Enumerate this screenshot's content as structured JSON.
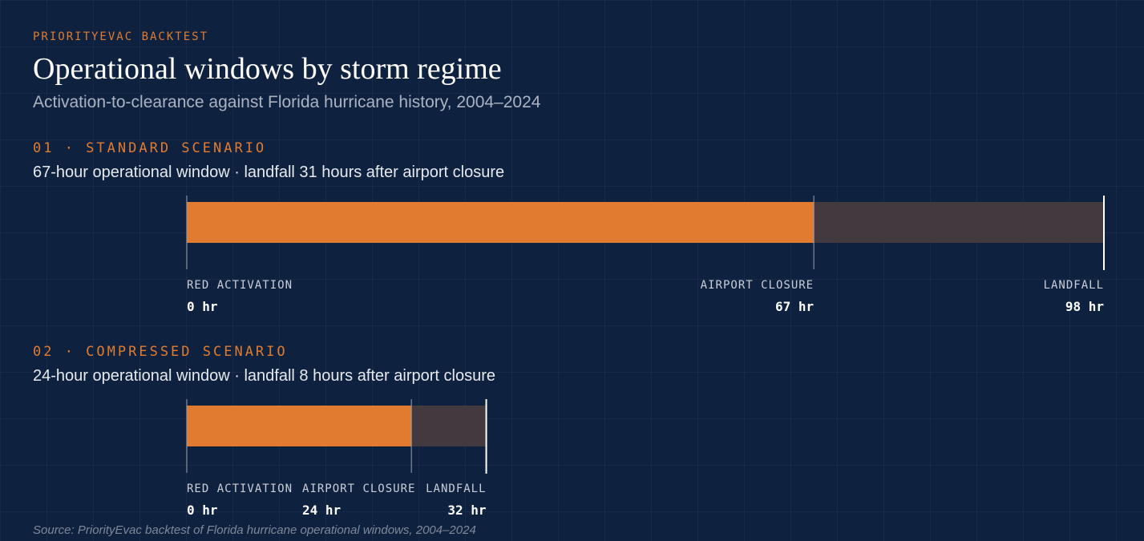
{
  "header": {
    "eyebrow": "PRIORITYEVAC BACKTEST",
    "title": "Operational windows by storm regime",
    "subtitle": "Activation-to-clearance against Florida hurricane history, 2004–2024"
  },
  "colors": {
    "background": "#0e2240",
    "operational_window": "#e07b2f",
    "post_closure": "#433a40",
    "accent": "#e07b2f"
  },
  "chart_data": [
    {
      "type": "bar",
      "label": "01 · STANDARD SCENARIO",
      "description": "67-hour operational window · landfall 31 hours after airport closure",
      "xlim": [
        0,
        98
      ],
      "segments": [
        {
          "start": 0,
          "end": 67
        },
        {
          "start": 67,
          "end": 98
        }
      ],
      "milestones": [
        {
          "label": "RED ACTIVATION",
          "value": 0,
          "value_label": "0 hr"
        },
        {
          "label": "AIRPORT CLOSURE",
          "value": 67,
          "value_label": "67 hr"
        },
        {
          "label": "LANDFALL",
          "value": 98,
          "value_label": "98 hr"
        }
      ]
    },
    {
      "type": "bar",
      "label": "02 · COMPRESSED SCENARIO",
      "description": "24-hour operational window · landfall 8 hours after airport closure",
      "xlim": [
        0,
        98
      ],
      "segments": [
        {
          "start": 0,
          "end": 24
        },
        {
          "start": 24,
          "end": 32
        }
      ],
      "milestones": [
        {
          "label": "RED ACTIVATION",
          "value": 0,
          "value_label": "0 hr"
        },
        {
          "label": "AIRPORT CLOSURE",
          "value": 24,
          "value_label": "24 hr"
        },
        {
          "label": "LANDFALL",
          "value": 32,
          "value_label": "32 hr"
        }
      ]
    }
  ],
  "footer": {
    "source": "Source: PriorityEvac backtest of Florida hurricane operational windows, 2004–2024"
  }
}
